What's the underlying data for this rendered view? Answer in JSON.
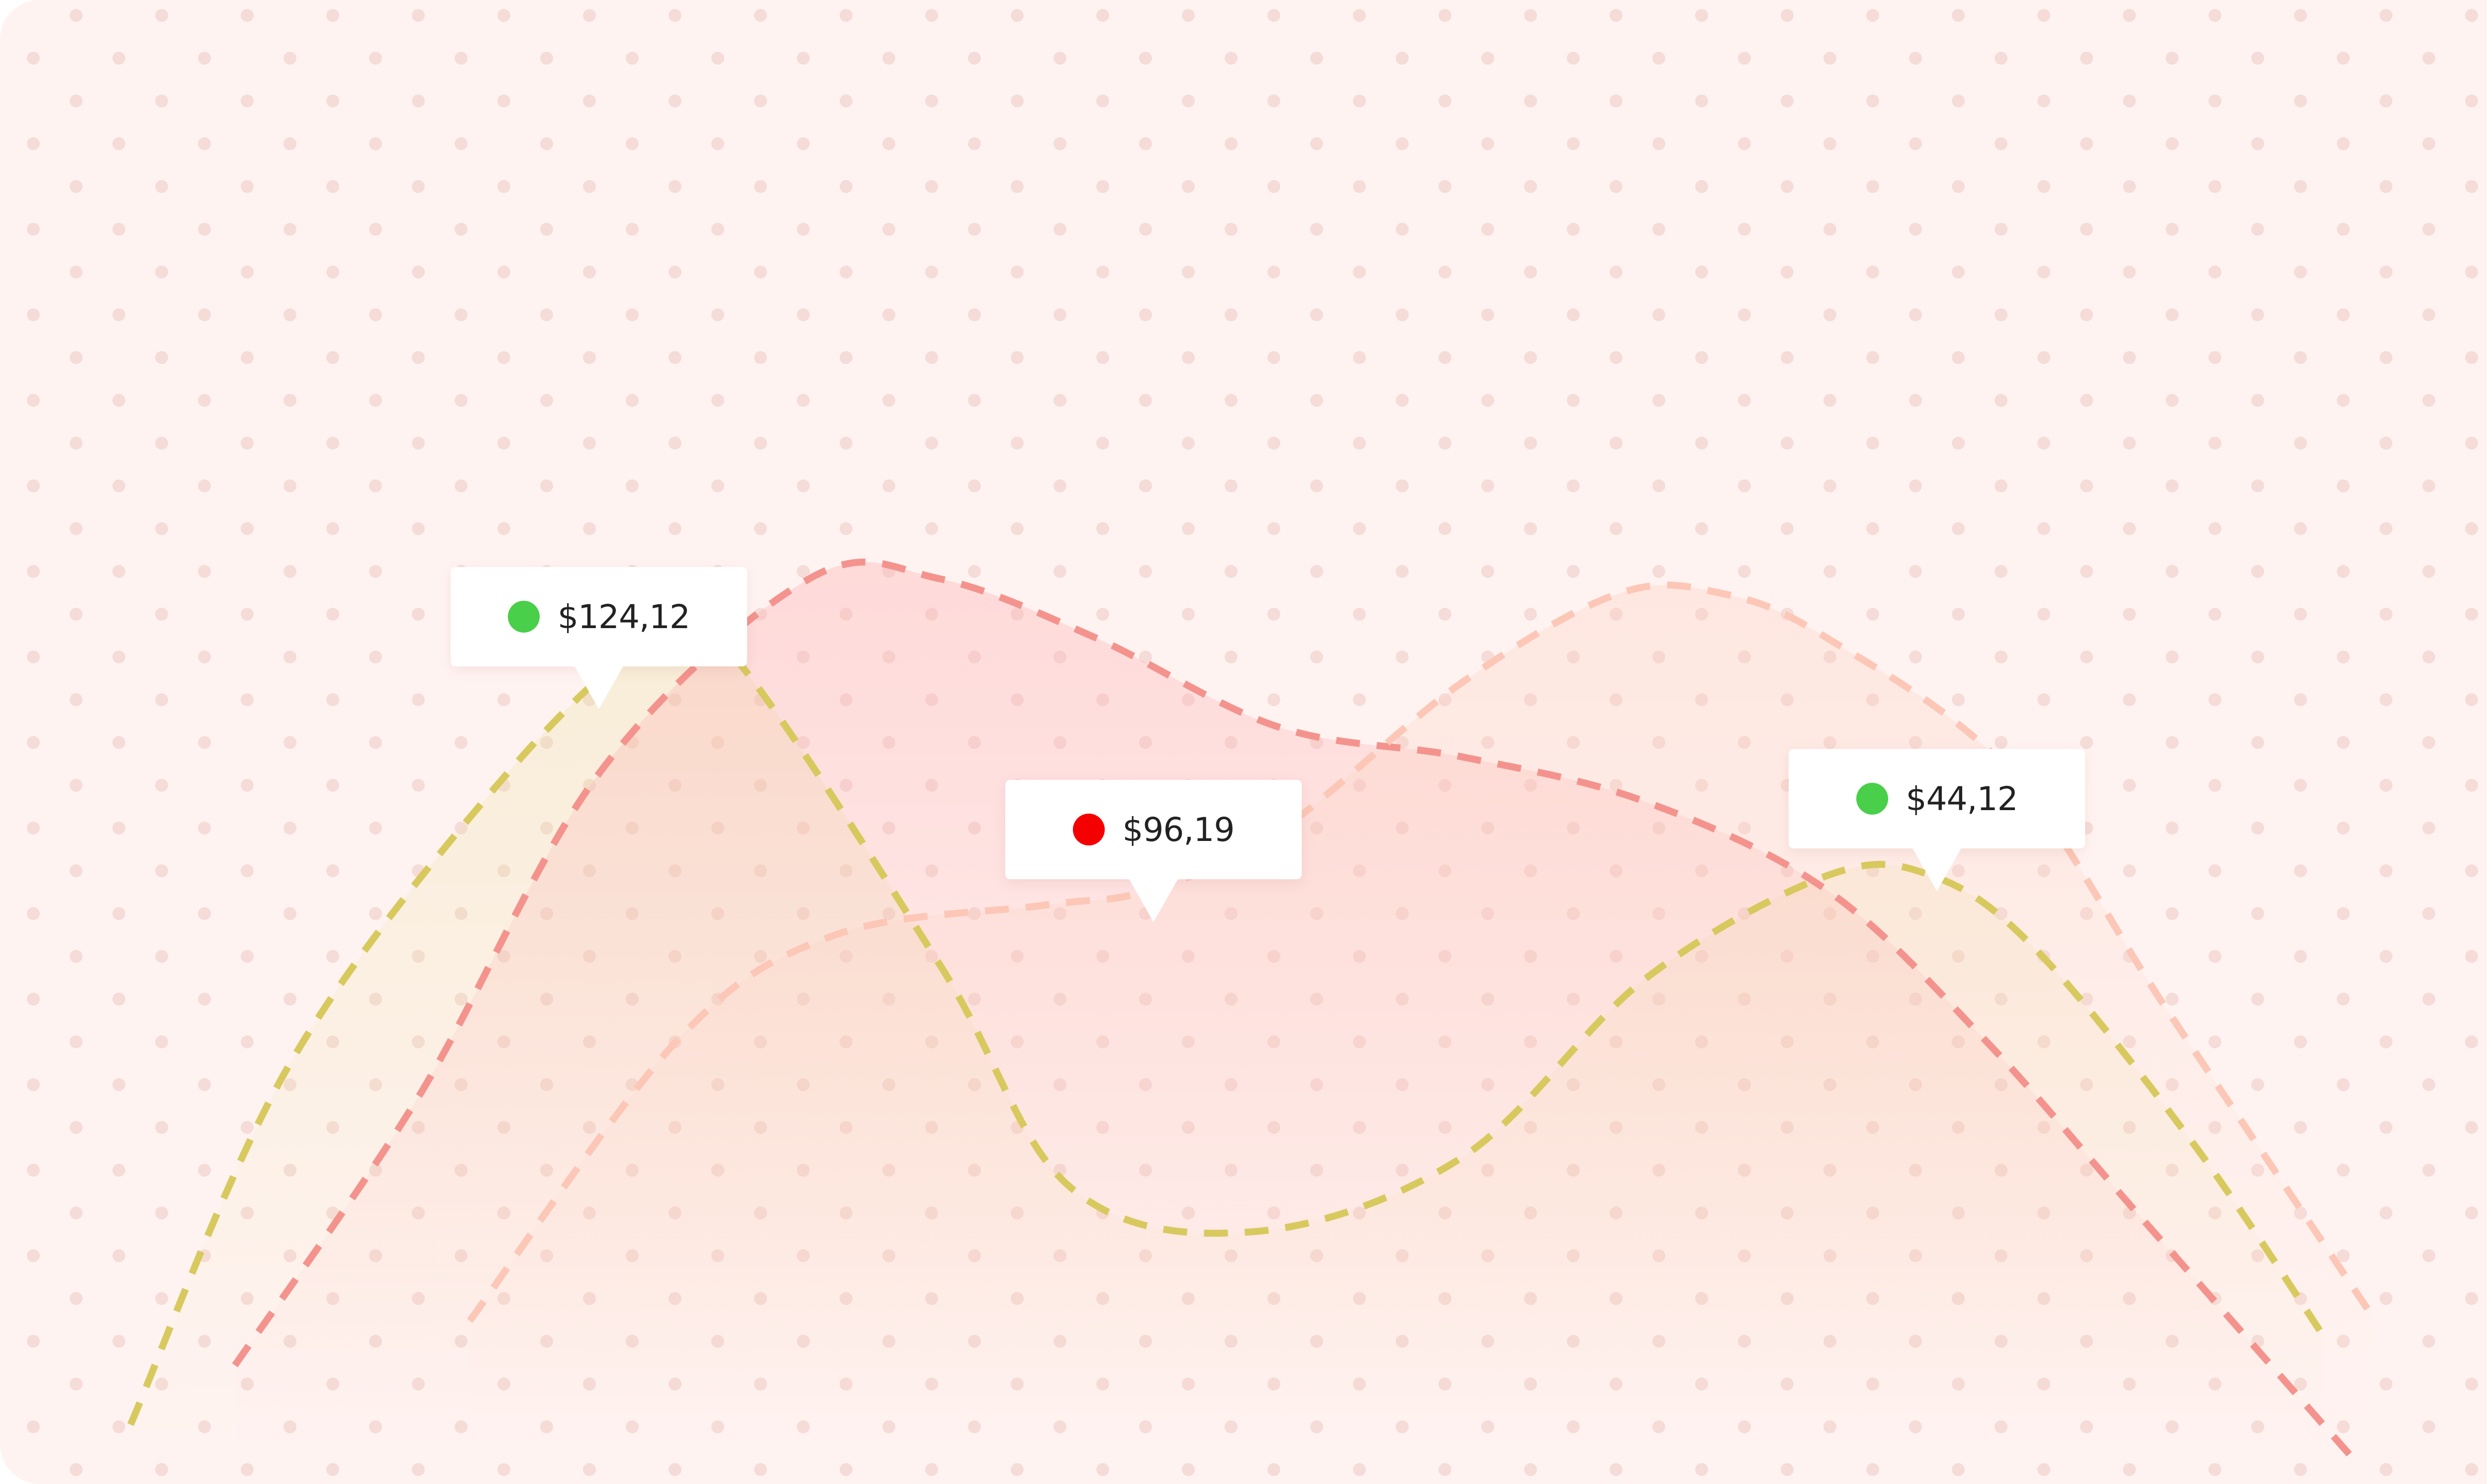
{
  "colors": {
    "background": "#fff3f1",
    "dot_grid": "#f5dcd8",
    "up": "#49cf49",
    "down": "#f50000"
  },
  "chart_data": {
    "type": "area",
    "xlim": [
      0,
      100
    ],
    "ylim": [
      0,
      100
    ],
    "grid": true,
    "legend": "none",
    "series": [
      {
        "color": "#d8c95e",
        "x": [
          5,
          11,
          19,
          25,
          28,
          36,
          41,
          48,
          56,
          63,
          70,
          74,
          78,
          84,
          89
        ],
        "y": [
          4,
          28,
          47,
          57,
          56,
          35,
          20,
          17,
          22,
          34,
          41,
          41,
          36,
          23,
          10
        ]
      },
      {
        "color": "#f4938d",
        "x": [
          9,
          16,
          23,
          31,
          36,
          42,
          49,
          56,
          63,
          70,
          76,
          82,
          90
        ],
        "y": [
          8,
          26,
          48,
          61,
          61,
          57,
          51,
          49,
          46,
          40,
          30,
          18,
          2
        ]
      },
      {
        "color": "#fcc7b6",
        "x": [
          18,
          26,
          32,
          40,
          44,
          49,
          56,
          62,
          66,
          70,
          77,
          83,
          91
        ],
        "y": [
          11,
          30,
          37,
          39,
          40,
          44,
          54,
          60,
          60,
          57,
          48,
          32,
          11
        ]
      }
    ],
    "annotations": [
      {
        "text": "$124,12",
        "x": 23,
        "y": 57,
        "status": "up"
      },
      {
        "text": "$96,19",
        "x": 44,
        "y": 40,
        "status": "down"
      },
      {
        "text": "$44,12",
        "x": 74,
        "y": 41,
        "status": "up"
      }
    ]
  }
}
